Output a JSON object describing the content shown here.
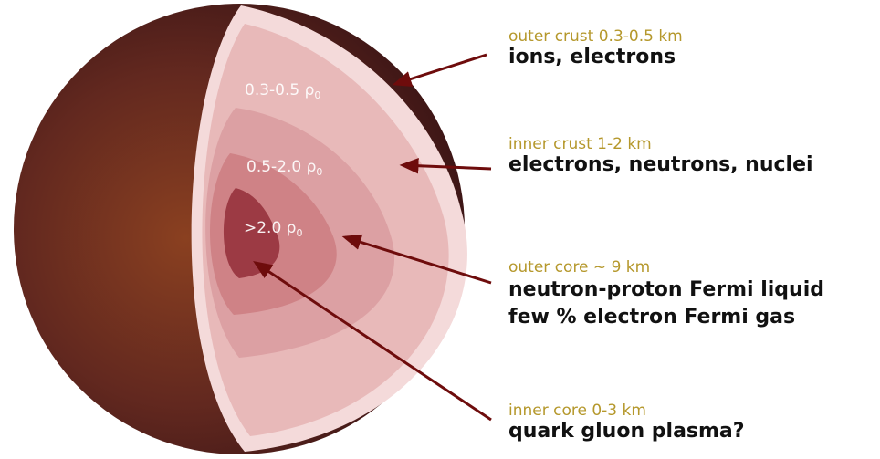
{
  "colors": {
    "sphere_dark": "#4a1c1a",
    "sphere_glow": "#8a4020",
    "outer_crust": "#f4dada",
    "inner_crust": "#e7b7b7",
    "outer_core": "#d98f92",
    "inner_core": "#9c3a44",
    "arrow": "#6e0c0c",
    "caption": "#b5982c",
    "text": "#111111"
  },
  "density_labels": {
    "outer_crust": "0.3-0.5 ρ",
    "outer_crust_sub": "0",
    "inner_crust": "0.5-2.0 ρ",
    "inner_crust_sub": "0",
    "core": ">2.0 ρ",
    "core_sub": "0"
  },
  "layers": [
    {
      "caption": "outer crust 0.3-0.5 km",
      "lines": [
        "ions, electrons"
      ]
    },
    {
      "caption": "inner crust 1-2 km",
      "lines": [
        "electrons, neutrons, nuclei"
      ]
    },
    {
      "caption": "outer core ~ 9 km",
      "lines": [
        "neutron-proton Fermi liquid",
        "few % electron Fermi gas"
      ]
    },
    {
      "caption": "inner core 0-3 km",
      "lines": [
        "quark gluon plasma?"
      ]
    }
  ]
}
